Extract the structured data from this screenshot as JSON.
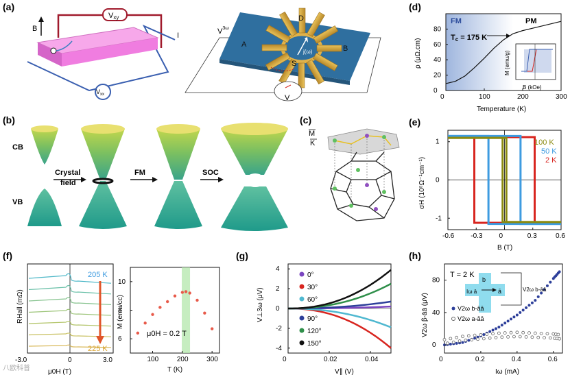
{
  "panels": {
    "a": {
      "label": "(a)",
      "B": "B",
      "Vxy": "V",
      "Vxy_sub": "xy",
      "Vxx": "V",
      "Vxx_sub": "xx",
      "I": "I",
      "V3w": "V",
      "V3w_sup": "3ω",
      "D": "D",
      "A": "A",
      "B_pad": "B",
      "S": "S",
      "jw": "j(ω)",
      "V": "V"
    },
    "b": {
      "label": "(b)",
      "CB": "CB",
      "VB": "VB",
      "crystal": "Crystal",
      "field": "field",
      "FM": "FM",
      "SOC": "SOC"
    },
    "c": {
      "label": "(c)",
      "M": "M",
      "K": "K"
    },
    "d": {
      "label": "(d)",
      "FM": "FM",
      "PM": "PM",
      "tc": "T",
      "tc_sub": "c",
      "tc_val": " = 175 K",
      "ylabel": "ρ (μΩ.cm)",
      "xlabel": "Temperature (K)",
      "inset_ylabel": "M (emu/g)",
      "inset_xlabel": "B (kOe)"
    },
    "e": {
      "label": "(e)",
      "ylabel": "σH (10⁵Ω⁻¹cm⁻¹)",
      "xlabel": "B (T)",
      "legend": [
        "100 K",
        "50 K",
        "2 K"
      ]
    },
    "f": {
      "label": "(f)",
      "t_top": "205 K",
      "t_bot": "225 K",
      "ylabel": "RHall (mΩ)",
      "xlabel": "μ0H (T)",
      "xmin": "-3.0",
      "xmid": "0",
      "xmax": "3.0",
      "m_ylabel": "M (emu/cc)",
      "m_xlabel": "T (K)",
      "field_note": "μ0H = 0.2 T"
    },
    "g": {
      "label": "(g)",
      "ylabel": "V⊥3ω (μV)",
      "xlabel": "V∥ (V)",
      "legend": [
        "0°",
        "30°",
        "60°",
        "90°",
        "120°",
        "150°"
      ]
    },
    "h": {
      "label": "(h)",
      "note": "T = 2 K",
      "ylabel": "V2ω β-āā (μV)",
      "xlabel": "Iω (mA)",
      "l1": "V2ω b-āā",
      "l2": "V2ω a-āā",
      "box_b": "b",
      "box_a": "ā",
      "box_la": "Iω ā",
      "box_vb": "V2ω b-āā"
    },
    "watermark": "八欧科普"
  },
  "colors": {
    "magenta": "#f07de0",
    "darkred": "#a01a2c",
    "blue": "#3a5fb0",
    "slate": "#2f6f9f",
    "gold": "#d8b04a",
    "green": "#2f8f3a",
    "red": "#d8251f",
    "lightblue": "#3d9be0",
    "olive": "#8a8a10",
    "purple": "#7a45c0",
    "cyan": "#4fb8d0",
    "navy": "#2d3f9a",
    "dgreen": "#2f8f4a",
    "black": "#111111",
    "orange": "#e0552a",
    "fmshade": "#9fb6de"
  },
  "chart_data": [
    {
      "panel": "d",
      "type": "line",
      "title": "",
      "xlabel": "Temperature (K)",
      "ylabel": "ρ (μΩ.cm)",
      "xlim": [
        0,
        300
      ],
      "ylim": [
        0,
        100
      ],
      "x_ticks": [
        0,
        100,
        200,
        300
      ],
      "y_ticks": [
        0,
        20,
        40,
        60,
        80
      ],
      "x": [
        0,
        25,
        50,
        75,
        100,
        125,
        150,
        175,
        200,
        250,
        300
      ],
      "values": [
        9,
        12,
        19,
        30,
        42,
        55,
        66,
        74,
        78,
        84,
        90
      ],
      "annotation": "Tc = 175 K",
      "inset": {
        "xlabel": "B (kOe)",
        "ylabel": "M (emu/g)",
        "x_ticks": [
          -10,
          0,
          10
        ],
        "y_ticks": [
          -10,
          0,
          10
        ]
      }
    },
    {
      "panel": "e",
      "type": "line",
      "xlabel": "B (T)",
      "ylabel": "σH (10⁵Ω⁻¹cm⁻¹)",
      "xlim": [
        -0.6,
        0.6
      ],
      "ylim": [
        -1.3,
        1.3
      ],
      "x_ticks": [
        -0.6,
        -0.3,
        0,
        0.3,
        0.6
      ],
      "y_ticks": [
        -1,
        0,
        1
      ],
      "series": [
        {
          "name": "100 K",
          "coercive_field": 0.02,
          "saturation": 1.1
        },
        {
          "name": "50 K",
          "coercive_field": 0.17,
          "saturation": 1.15
        },
        {
          "name": "2 K",
          "coercive_field": 0.32,
          "saturation": 1.12
        }
      ]
    },
    {
      "panel": "f",
      "type": "line",
      "xlabel": "μ0H (T)",
      "ylabel": "RHall (mΩ)",
      "xlim": [
        -3.0,
        3.0
      ],
      "x_ticks": [
        -3.0,
        0,
        3.0
      ],
      "series_labels": [
        "205 K",
        "225 K"
      ]
    },
    {
      "panel": "f2",
      "type": "scatter",
      "xlabel": "T (K)",
      "ylabel": "M (emu/cc)",
      "xlim": [
        25,
        325
      ],
      "ylim": [
        5,
        11
      ],
      "x_ticks": [
        100,
        200,
        300
      ],
      "y_ticks": [
        6,
        8,
        10
      ],
      "x": [
        50,
        75,
        100,
        125,
        150,
        175,
        200,
        212,
        225,
        250,
        275,
        300
      ],
      "values": [
        6.4,
        7.1,
        7.7,
        8.2,
        8.6,
        9.0,
        9.25,
        9.3,
        9.2,
        8.7,
        7.8,
        6.7
      ],
      "annotation": "μ0H = 0.2 T"
    },
    {
      "panel": "g",
      "type": "line",
      "xlabel": "V∥ (V)",
      "ylabel": "V⊥3ω (μV)",
      "xlim": [
        0,
        0.05
      ],
      "ylim": [
        -4.5,
        4.5
      ],
      "x_ticks": [
        0,
        0.02,
        0.04
      ],
      "y_ticks": [
        -4,
        -2,
        0,
        2,
        4
      ],
      "series": [
        {
          "name": "0°",
          "end_value": 0.2
        },
        {
          "name": "30°",
          "end_value": -4.0
        },
        {
          "name": "60°",
          "end_value": -1.9
        },
        {
          "name": "90°",
          "end_value": 0.7
        },
        {
          "name": "120°",
          "end_value": 2.5
        },
        {
          "name": "150°",
          "end_value": 3.9
        }
      ]
    },
    {
      "panel": "h",
      "type": "scatter",
      "xlabel": "Iω (mA)",
      "ylabel": "V2ω β-āā (μV)",
      "xlim": [
        0,
        0.65
      ],
      "ylim": [
        -10,
        100
      ],
      "x_ticks": [
        0,
        0.2,
        0.4,
        0.6
      ],
      "y_ticks": [
        0,
        40,
        80
      ],
      "series": [
        {
          "name": "V2ω b-āā",
          "x": [
            0,
            0.1,
            0.2,
            0.3,
            0.4,
            0.5,
            0.6,
            0.64
          ],
          "values": [
            0,
            3,
            11,
            22,
            37,
            55,
            82,
            92
          ]
        },
        {
          "name": "V2ω a-āā",
          "x": [
            0,
            0.1,
            0.2,
            0.3,
            0.4,
            0.5,
            0.6,
            0.64
          ],
          "values": [
            4,
            8,
            10,
            12,
            13,
            12,
            11,
            10
          ]
        }
      ]
    }
  ]
}
